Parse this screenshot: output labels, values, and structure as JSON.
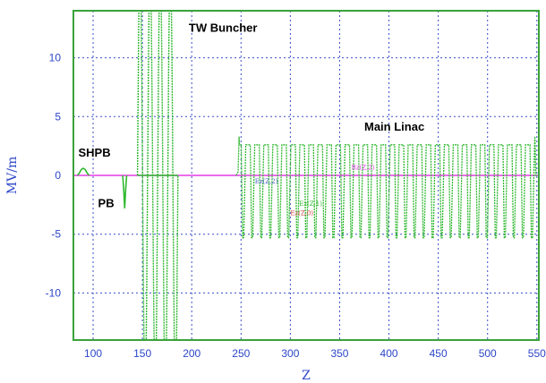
{
  "chart_data": {
    "type": "line",
    "title": "",
    "xlabel": "Z",
    "ylabel": "MV/m",
    "xlim": [
      80,
      552
    ],
    "ylim": [
      -14,
      14
    ],
    "x_ticks": [
      100,
      150,
      200,
      250,
      300,
      350,
      400,
      450,
      500,
      550
    ],
    "y_ticks": [
      10,
      5,
      0,
      -5,
      -10
    ],
    "grid": true,
    "colors": {
      "field": "#2fb82f",
      "baseline": "#e63ce6",
      "frame": "#3aa23a",
      "grid": "#3a50c8",
      "axis_text": "#2c46c8"
    },
    "annotations": [
      {
        "text": "TW Buncher",
        "x": 197,
        "y": 12.2
      },
      {
        "text": "Main Linac",
        "x": 375,
        "y": 3.8
      },
      {
        "text": "SHPB",
        "x": 85,
        "y": 1.6
      },
      {
        "text": "PB",
        "x": 105,
        "y": -2.7
      }
    ],
    "small_labels": [
      {
        "text": "Ez(Z,2)",
        "x": 264,
        "y": -0.7,
        "color": "#4a63c8"
      },
      {
        "text": "Bz(Z,2)",
        "x": 362,
        "y": 0.5,
        "color": "#e63ce6"
      },
      {
        "text": "Ez(Z,0)",
        "x": 300,
        "y": -3.4,
        "color": "#d04040"
      },
      {
        "text": "Ez(Z,1)",
        "x": 309,
        "y": -2.6,
        "color": "#2fb82f"
      }
    ],
    "series": [
      {
        "style": "baseline",
        "x": [
          80,
          552
        ],
        "values": [
          0,
          0
        ]
      },
      {
        "style": "shpb",
        "x": [
          84,
          86,
          88,
          90,
          92,
          94,
          96
        ],
        "values": [
          0,
          0.2,
          0.5,
          0.6,
          0.5,
          0.2,
          0
        ]
      },
      {
        "style": "pb",
        "x": [
          130,
          131,
          132,
          133,
          134
        ],
        "values": [
          0,
          -1.2,
          -2.8,
          -1.2,
          0
        ]
      },
      {
        "style": "tw_buncher",
        "x": [
          145,
          186
        ],
        "cells": 4,
        "amplitude": 14
      },
      {
        "style": "main_linac",
        "x": [
          247,
          549
        ],
        "cells": 33,
        "max": 2.6,
        "min": -5.3,
        "end_peak": 3.3
      }
    ]
  }
}
